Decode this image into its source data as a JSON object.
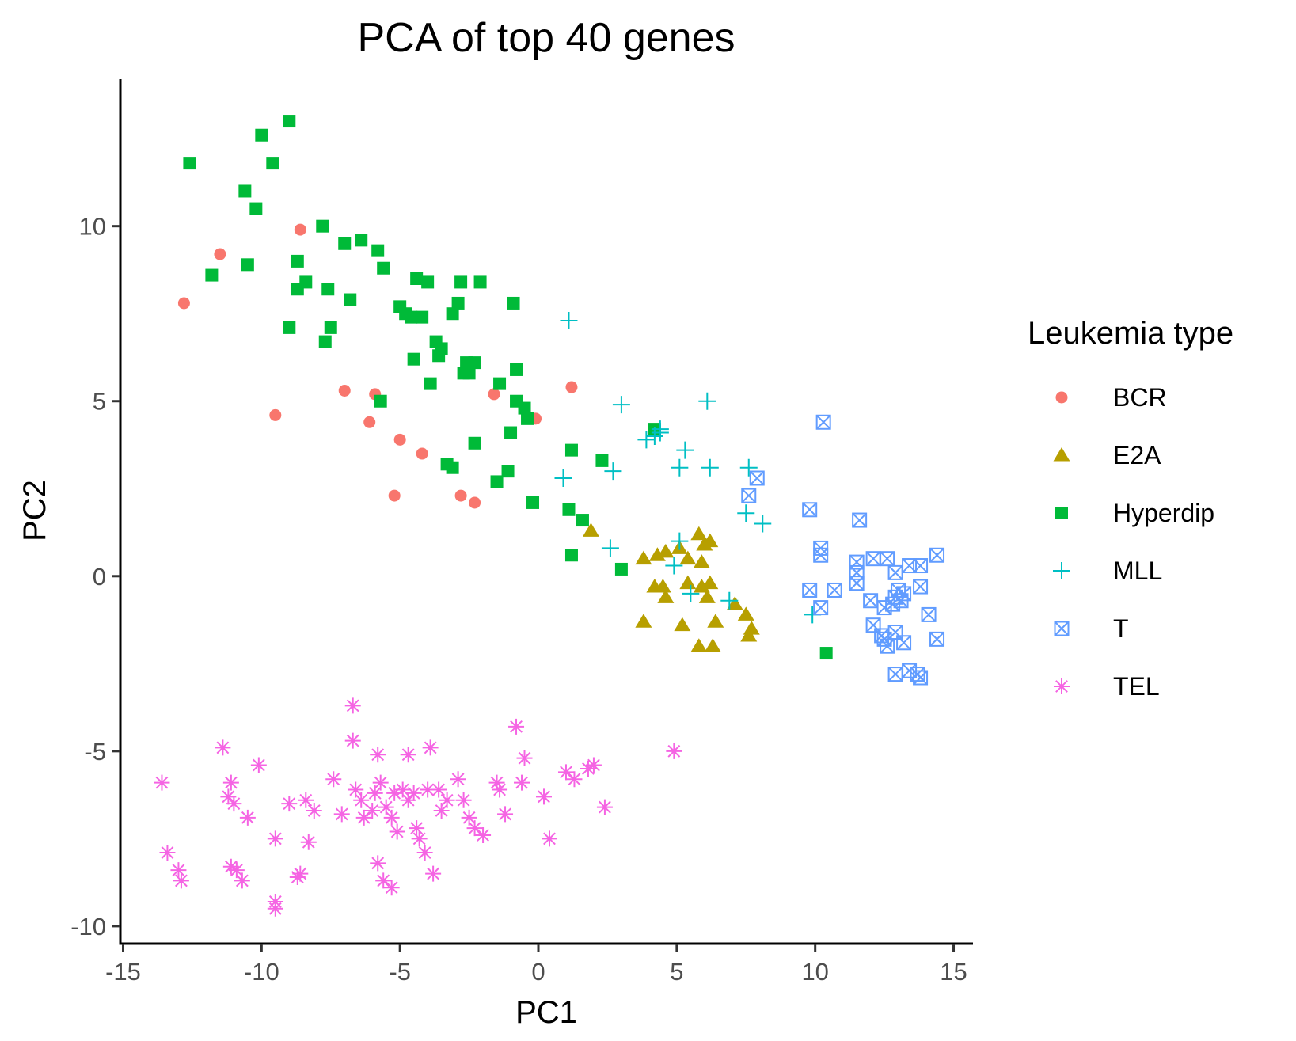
{
  "chart_data": {
    "type": "scatter",
    "title": "PCA of top 40 genes",
    "xlabel": "PC1",
    "ylabel": "PC2",
    "xlim": [
      -15.1,
      15.7
    ],
    "ylim": [
      -10.5,
      14.2
    ],
    "xticks": [
      -15,
      -10,
      -5,
      0,
      5,
      10,
      15
    ],
    "yticks": [
      -10,
      -5,
      0,
      5,
      10
    ],
    "grid": false,
    "legend": {
      "title": "Leukemia type",
      "position": "right"
    },
    "series": [
      {
        "name": "BCR",
        "marker": "circle",
        "color": "#F8766D",
        "points": [
          [
            -12.8,
            7.8
          ],
          [
            -11.5,
            9.2
          ],
          [
            -8.6,
            9.9
          ],
          [
            -9.5,
            4.6
          ],
          [
            -7,
            5.3
          ],
          [
            -6.1,
            4.4
          ],
          [
            -5.9,
            5.2
          ],
          [
            -5.0,
            3.9
          ],
          [
            -4.2,
            3.5
          ],
          [
            -5.2,
            2.3
          ],
          [
            -2.8,
            2.3
          ],
          [
            -2.3,
            2.1
          ],
          [
            -1.6,
            5.2
          ],
          [
            -0.1,
            4.5
          ],
          [
            1.2,
            5.4
          ]
        ]
      },
      {
        "name": "E2A",
        "marker": "triangle",
        "color": "#B79F00",
        "points": [
          [
            1.9,
            1.3
          ],
          [
            3.8,
            0.5
          ],
          [
            4.3,
            0.6
          ],
          [
            4.6,
            0.7
          ],
          [
            5.1,
            0.8
          ],
          [
            5.4,
            0.5
          ],
          [
            5.8,
            1.2
          ],
          [
            6.0,
            0.9
          ],
          [
            6.2,
            1.0
          ],
          [
            5.9,
            0.4
          ],
          [
            4.2,
            -0.3
          ],
          [
            4.5,
            -0.3
          ],
          [
            4.6,
            -0.6
          ],
          [
            5.4,
            -0.2
          ],
          [
            5.9,
            -0.3
          ],
          [
            6.2,
            -0.2
          ],
          [
            6.1,
            -0.6
          ],
          [
            7.1,
            -0.8
          ],
          [
            7.5,
            -1.1
          ],
          [
            7.7,
            -1.5
          ],
          [
            7.6,
            -1.7
          ],
          [
            3.8,
            -1.3
          ],
          [
            5.2,
            -1.4
          ],
          [
            6.4,
            -1.3
          ],
          [
            5.8,
            -2.0
          ],
          [
            6.3,
            -2.0
          ]
        ]
      },
      {
        "name": "Hyperdip",
        "marker": "square",
        "color": "#00BA38",
        "points": [
          [
            -12.6,
            11.8
          ],
          [
            -10.0,
            12.6
          ],
          [
            -9.0,
            13.0
          ],
          [
            -9.6,
            11.8
          ],
          [
            -10.6,
            11.0
          ],
          [
            -10.2,
            10.5
          ],
          [
            -7.8,
            10.0
          ],
          [
            -6.4,
            9.6
          ],
          [
            -7.0,
            9.5
          ],
          [
            -5.8,
            9.3
          ],
          [
            -5.6,
            8.8
          ],
          [
            -8.7,
            9.0
          ],
          [
            -10.5,
            8.9
          ],
          [
            -11.8,
            8.6
          ],
          [
            -8.4,
            8.4
          ],
          [
            -8.7,
            8.2
          ],
          [
            -7.6,
            8.2
          ],
          [
            -6.8,
            7.9
          ],
          [
            -4.4,
            8.5
          ],
          [
            -4.0,
            8.4
          ],
          [
            -2.8,
            8.4
          ],
          [
            -2.1,
            8.4
          ],
          [
            -0.9,
            7.8
          ],
          [
            -5.0,
            7.7
          ],
          [
            -4.8,
            7.5
          ],
          [
            -4.6,
            7.4
          ],
          [
            -4.2,
            7.4
          ],
          [
            -2.9,
            7.8
          ],
          [
            -3.1,
            7.5
          ],
          [
            -9.0,
            7.1
          ],
          [
            -7.5,
            7.1
          ],
          [
            -7.7,
            6.7
          ],
          [
            -3.7,
            6.7
          ],
          [
            -3.5,
            6.5
          ],
          [
            -4.5,
            6.2
          ],
          [
            -3.6,
            6.3
          ],
          [
            -2.6,
            6.1
          ],
          [
            -2.3,
            6.1
          ],
          [
            -2.7,
            5.8
          ],
          [
            -2.5,
            5.8
          ],
          [
            -0.8,
            5.9
          ],
          [
            -1.4,
            5.5
          ],
          [
            -3.9,
            5.5
          ],
          [
            -5.7,
            5.0
          ],
          [
            -0.8,
            5.0
          ],
          [
            -0.5,
            4.8
          ],
          [
            -0.4,
            4.5
          ],
          [
            -1.0,
            4.1
          ],
          [
            -2.3,
            3.8
          ],
          [
            -3.3,
            3.2
          ],
          [
            -3.1,
            3.1
          ],
          [
            -1.1,
            3.0
          ],
          [
            -1.5,
            2.7
          ],
          [
            4.2,
            4.2
          ],
          [
            1.2,
            3.6
          ],
          [
            2.3,
            3.3
          ],
          [
            -0.2,
            2.1
          ],
          [
            1.1,
            1.9
          ],
          [
            1.6,
            1.6
          ],
          [
            1.2,
            0.6
          ],
          [
            3.0,
            0.2
          ],
          [
            10.4,
            -2.2
          ]
        ]
      },
      {
        "name": "MLL",
        "marker": "plus",
        "color": "#00BFC4",
        "points": [
          [
            1.1,
            7.3
          ],
          [
            3.0,
            4.9
          ],
          [
            6.1,
            5.0
          ],
          [
            4.4,
            4.2
          ],
          [
            4.2,
            4.0
          ],
          [
            3.9,
            3.9
          ],
          [
            4.4,
            4.1
          ],
          [
            5.3,
            3.6
          ],
          [
            5.1,
            3.1
          ],
          [
            6.2,
            3.1
          ],
          [
            2.7,
            3.0
          ],
          [
            0.9,
            2.8
          ],
          [
            7.6,
            3.1
          ],
          [
            7.5,
            1.8
          ],
          [
            8.1,
            1.5
          ],
          [
            2.6,
            0.8
          ],
          [
            5.1,
            1.0
          ],
          [
            4.9,
            0.3
          ],
          [
            5.5,
            -0.5
          ],
          [
            6.9,
            -0.7
          ],
          [
            9.9,
            -1.1
          ]
        ]
      },
      {
        "name": "T",
        "marker": "boxx",
        "color": "#619CFF",
        "points": [
          [
            10.3,
            4.4
          ],
          [
            7.6,
            2.3
          ],
          [
            7.9,
            2.8
          ],
          [
            9.8,
            1.9
          ],
          [
            11.6,
            1.6
          ],
          [
            10.2,
            0.8
          ],
          [
            10.2,
            0.6
          ],
          [
            11.5,
            0.4
          ],
          [
            12.1,
            0.5
          ],
          [
            12.6,
            0.5
          ],
          [
            13.4,
            0.3
          ],
          [
            13.8,
            0.3
          ],
          [
            14.4,
            0.6
          ],
          [
            11.5,
            0.1
          ],
          [
            12.9,
            0.1
          ],
          [
            9.8,
            -0.4
          ],
          [
            10.7,
            -0.4
          ],
          [
            11.5,
            -0.2
          ],
          [
            12.0,
            -0.7
          ],
          [
            13.0,
            -0.4
          ],
          [
            13.2,
            -0.5
          ],
          [
            12.9,
            -0.6
          ],
          [
            13.1,
            -0.7
          ],
          [
            13.8,
            -0.3
          ],
          [
            10.2,
            -0.9
          ],
          [
            12.5,
            -0.9
          ],
          [
            12.8,
            -0.8
          ],
          [
            12.1,
            -1.4
          ],
          [
            12.4,
            -1.7
          ],
          [
            12.5,
            -1.8
          ],
          [
            12.9,
            -1.6
          ],
          [
            13.2,
            -1.9
          ],
          [
            12.6,
            -2.0
          ],
          [
            14.1,
            -1.1
          ],
          [
            14.4,
            -1.8
          ],
          [
            12.9,
            -2.8
          ],
          [
            13.4,
            -2.7
          ],
          [
            13.7,
            -2.8
          ],
          [
            13.8,
            -2.9
          ]
        ]
      },
      {
        "name": "TEL",
        "marker": "asterisk",
        "color": "#F564E3",
        "points": [
          [
            -13.6,
            -5.9
          ],
          [
            -11.4,
            -4.9
          ],
          [
            -11.1,
            -5.9
          ],
          [
            -11.2,
            -6.3
          ],
          [
            -11.0,
            -6.5
          ],
          [
            -10.1,
            -5.4
          ],
          [
            -10.5,
            -6.9
          ],
          [
            -9.0,
            -6.5
          ],
          [
            -8.4,
            -6.4
          ],
          [
            -8.1,
            -6.7
          ],
          [
            -7.4,
            -5.8
          ],
          [
            -7.1,
            -6.8
          ],
          [
            -6.7,
            -3.7
          ],
          [
            -6.7,
            -4.7
          ],
          [
            -6.6,
            -6.1
          ],
          [
            -6.4,
            -6.4
          ],
          [
            -6.3,
            -6.9
          ],
          [
            -6.0,
            -6.7
          ],
          [
            -5.9,
            -6.2
          ],
          [
            -5.8,
            -5.1
          ],
          [
            -5.7,
            -5.9
          ],
          [
            -5.5,
            -6.6
          ],
          [
            -5.3,
            -6.9
          ],
          [
            -5.2,
            -6.2
          ],
          [
            -5.1,
            -7.3
          ],
          [
            -4.9,
            -6.1
          ],
          [
            -4.7,
            -6.4
          ],
          [
            -4.5,
            -6.2
          ],
          [
            -4.4,
            -7.2
          ],
          [
            -4.3,
            -7.5
          ],
          [
            -4.0,
            -6.1
          ],
          [
            -3.6,
            -6.1
          ],
          [
            -3.5,
            -6.7
          ],
          [
            -3.3,
            -6.4
          ],
          [
            -2.9,
            -5.8
          ],
          [
            -2.7,
            -6.4
          ],
          [
            -2.5,
            -6.9
          ],
          [
            -2.3,
            -7.2
          ],
          [
            -2.0,
            -7.4
          ],
          [
            -4.7,
            -5.1
          ],
          [
            -3.9,
            -4.9
          ],
          [
            -1.5,
            -5.9
          ],
          [
            -1.4,
            -6.1
          ],
          [
            -1.2,
            -6.8
          ],
          [
            -0.8,
            -4.3
          ],
          [
            -0.5,
            -5.2
          ],
          [
            -0.6,
            -5.9
          ],
          [
            0.2,
            -6.3
          ],
          [
            0.4,
            -7.5
          ],
          [
            1.0,
            -5.6
          ],
          [
            1.3,
            -5.8
          ],
          [
            1.8,
            -5.5
          ],
          [
            2.0,
            -5.4
          ],
          [
            2.4,
            -6.6
          ],
          [
            4.9,
            -5.0
          ],
          [
            -13.4,
            -7.9
          ],
          [
            -13.0,
            -8.4
          ],
          [
            -12.9,
            -8.7
          ],
          [
            -11.1,
            -8.3
          ],
          [
            -10.9,
            -8.4
          ],
          [
            -10.7,
            -8.7
          ],
          [
            -9.5,
            -7.5
          ],
          [
            -8.7,
            -8.6
          ],
          [
            -8.6,
            -8.5
          ],
          [
            -8.3,
            -7.6
          ],
          [
            -9.5,
            -9.3
          ],
          [
            -9.5,
            -9.5
          ],
          [
            -5.8,
            -8.2
          ],
          [
            -5.6,
            -8.7
          ],
          [
            -5.3,
            -8.9
          ],
          [
            -4.1,
            -7.9
          ],
          [
            -3.8,
            -8.5
          ]
        ]
      }
    ]
  }
}
